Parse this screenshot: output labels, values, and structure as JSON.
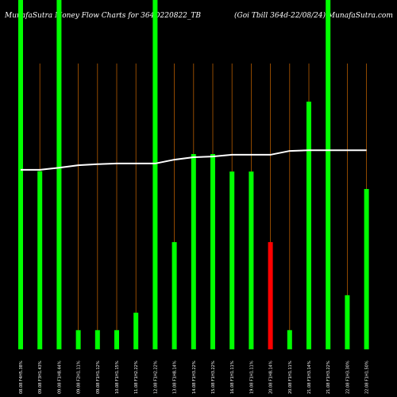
{
  "chart_data": {
    "type": "bar",
    "title": "MunafaSutra  Money Flow  Charts for 364D220822_TB",
    "subtitle": "(Goi   Tbill 364d-22/08/24) MunafaSutra.com",
    "categories": [
      "08.08 F4H5.38%",
      "09.08 F3H1.43%",
      "09.08 F1H8.44%",
      "09.08 F2H1.11%",
      "09.08 F1H1.12%",
      "10.08 F1H1.15%",
      "11.08 F1H2.22%",
      "12.08 F1H2.22%",
      "13.08 F1H8.14%",
      "14.08 F1H3.22%",
      "15.08 F1H3.22%",
      "16.08 F1H1.11%",
      "19.08 F1H1.11%",
      "20.08 F1H8.14%",
      "20.08 F1H1.11%",
      "21.08 F1H3.14%",
      "21.08 F1H3.22%",
      "22.08 F1H3.30%",
      "22.08 F1H1.50%"
    ],
    "ylim": [
      0,
      100
    ],
    "series": [
      {
        "type": "bar",
        "colors": [
          "#00ff00",
          "#00ff00",
          "#00ff00",
          "#00ff00",
          "#00ff00",
          "#00ff00",
          "#00ff00",
          "#00ff00",
          "#00ff00",
          "#00ff00",
          "#00ff00",
          "#00ff00",
          "#00ff00",
          "#ff0000",
          "#00ff00",
          "#00ff00",
          "#00ff00",
          "#00ff00",
          "#00ff00"
        ],
        "values": [
          100,
          51,
          100,
          5.5,
          5.5,
          5.5,
          10.5,
          100,
          30.7,
          55.9,
          55.9,
          50.9,
          50.9,
          30.7,
          5.5,
          70.9,
          100,
          15.5,
          45.9
        ]
      },
      {
        "type": "line",
        "color": "#ffffff",
        "values": [
          51.4,
          51.4,
          52,
          52.7,
          53,
          53.2,
          53.2,
          53.2,
          54.3,
          55,
          55.2,
          55.7,
          55.7,
          55.7,
          56.8,
          57,
          57,
          57,
          57
        ]
      }
    ]
  }
}
